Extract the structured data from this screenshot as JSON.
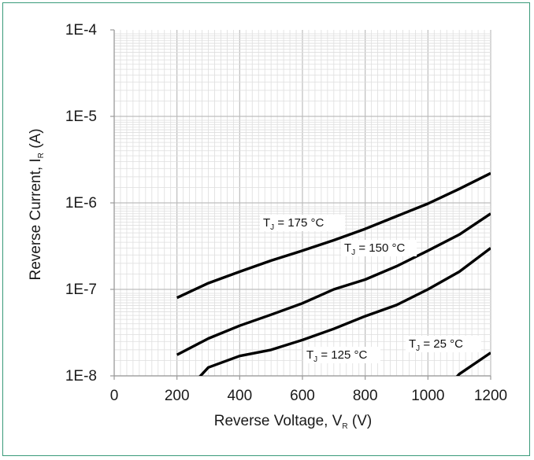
{
  "chart_data": {
    "type": "line",
    "title": "",
    "xlabel": {
      "main": "Reverse Voltage,  V",
      "sub": "R",
      "unit": " (V)"
    },
    "ylabel": {
      "main": "Reverse Current, I",
      "sub": "R",
      "unit": " (A)"
    },
    "xlim": [
      0,
      1200
    ],
    "ylim": [
      1e-08,
      0.0001
    ],
    "yscale": "log",
    "grid": true,
    "x_ticks": [
      "0",
      "200",
      "400",
      "600",
      "800",
      "1000",
      "1200"
    ],
    "y_ticks": [
      "1E-8",
      "1E-7",
      "1E-6",
      "1E-5",
      "1E-4"
    ],
    "series": [
      {
        "name": "175 °C",
        "label": {
          "t": "T",
          "j": "J",
          "rest": " = 175 °C"
        },
        "x": [
          200,
          300,
          400,
          500,
          600,
          700,
          800,
          900,
          1000,
          1100,
          1200
        ],
        "y": [
          8e-08,
          1.18e-07,
          1.6e-07,
          2.15e-07,
          2.8e-07,
          3.7e-07,
          5e-07,
          7e-07,
          9.8e-07,
          1.45e-06,
          2.2e-06
        ]
      },
      {
        "name": "150 °C",
        "label": {
          "t": "T",
          "j": "J",
          "rest": " = 150 °C"
        },
        "x": [
          200,
          300,
          400,
          500,
          600,
          700,
          800,
          900,
          1000,
          1100,
          1200
        ],
        "y": [
          1.75e-08,
          2.7e-08,
          3.8e-08,
          5.1e-08,
          6.9e-08,
          1e-07,
          1.3e-07,
          1.85e-07,
          2.8e-07,
          4.3e-07,
          7.5e-07
        ]
      },
      {
        "name": "125 °C",
        "label": {
          "t": "T",
          "j": "J",
          "rest": " = 125 °C"
        },
        "x": [
          250,
          300,
          400,
          500,
          600,
          700,
          800,
          900,
          1000,
          1100,
          1200
        ],
        "y": [
          8e-09,
          1.25e-08,
          1.7e-08,
          2e-08,
          2.6e-08,
          3.5e-08,
          4.9e-08,
          6.6e-08,
          1e-07,
          1.6e-07,
          3e-07
        ]
      },
      {
        "name": "25 °C",
        "label": {
          "t": "T",
          "j": "J",
          "rest": " =  25 °C"
        },
        "x": [
          1070,
          1100,
          1200
        ],
        "y": [
          8e-09,
          1.05e-08,
          1.85e-08
        ]
      }
    ]
  }
}
